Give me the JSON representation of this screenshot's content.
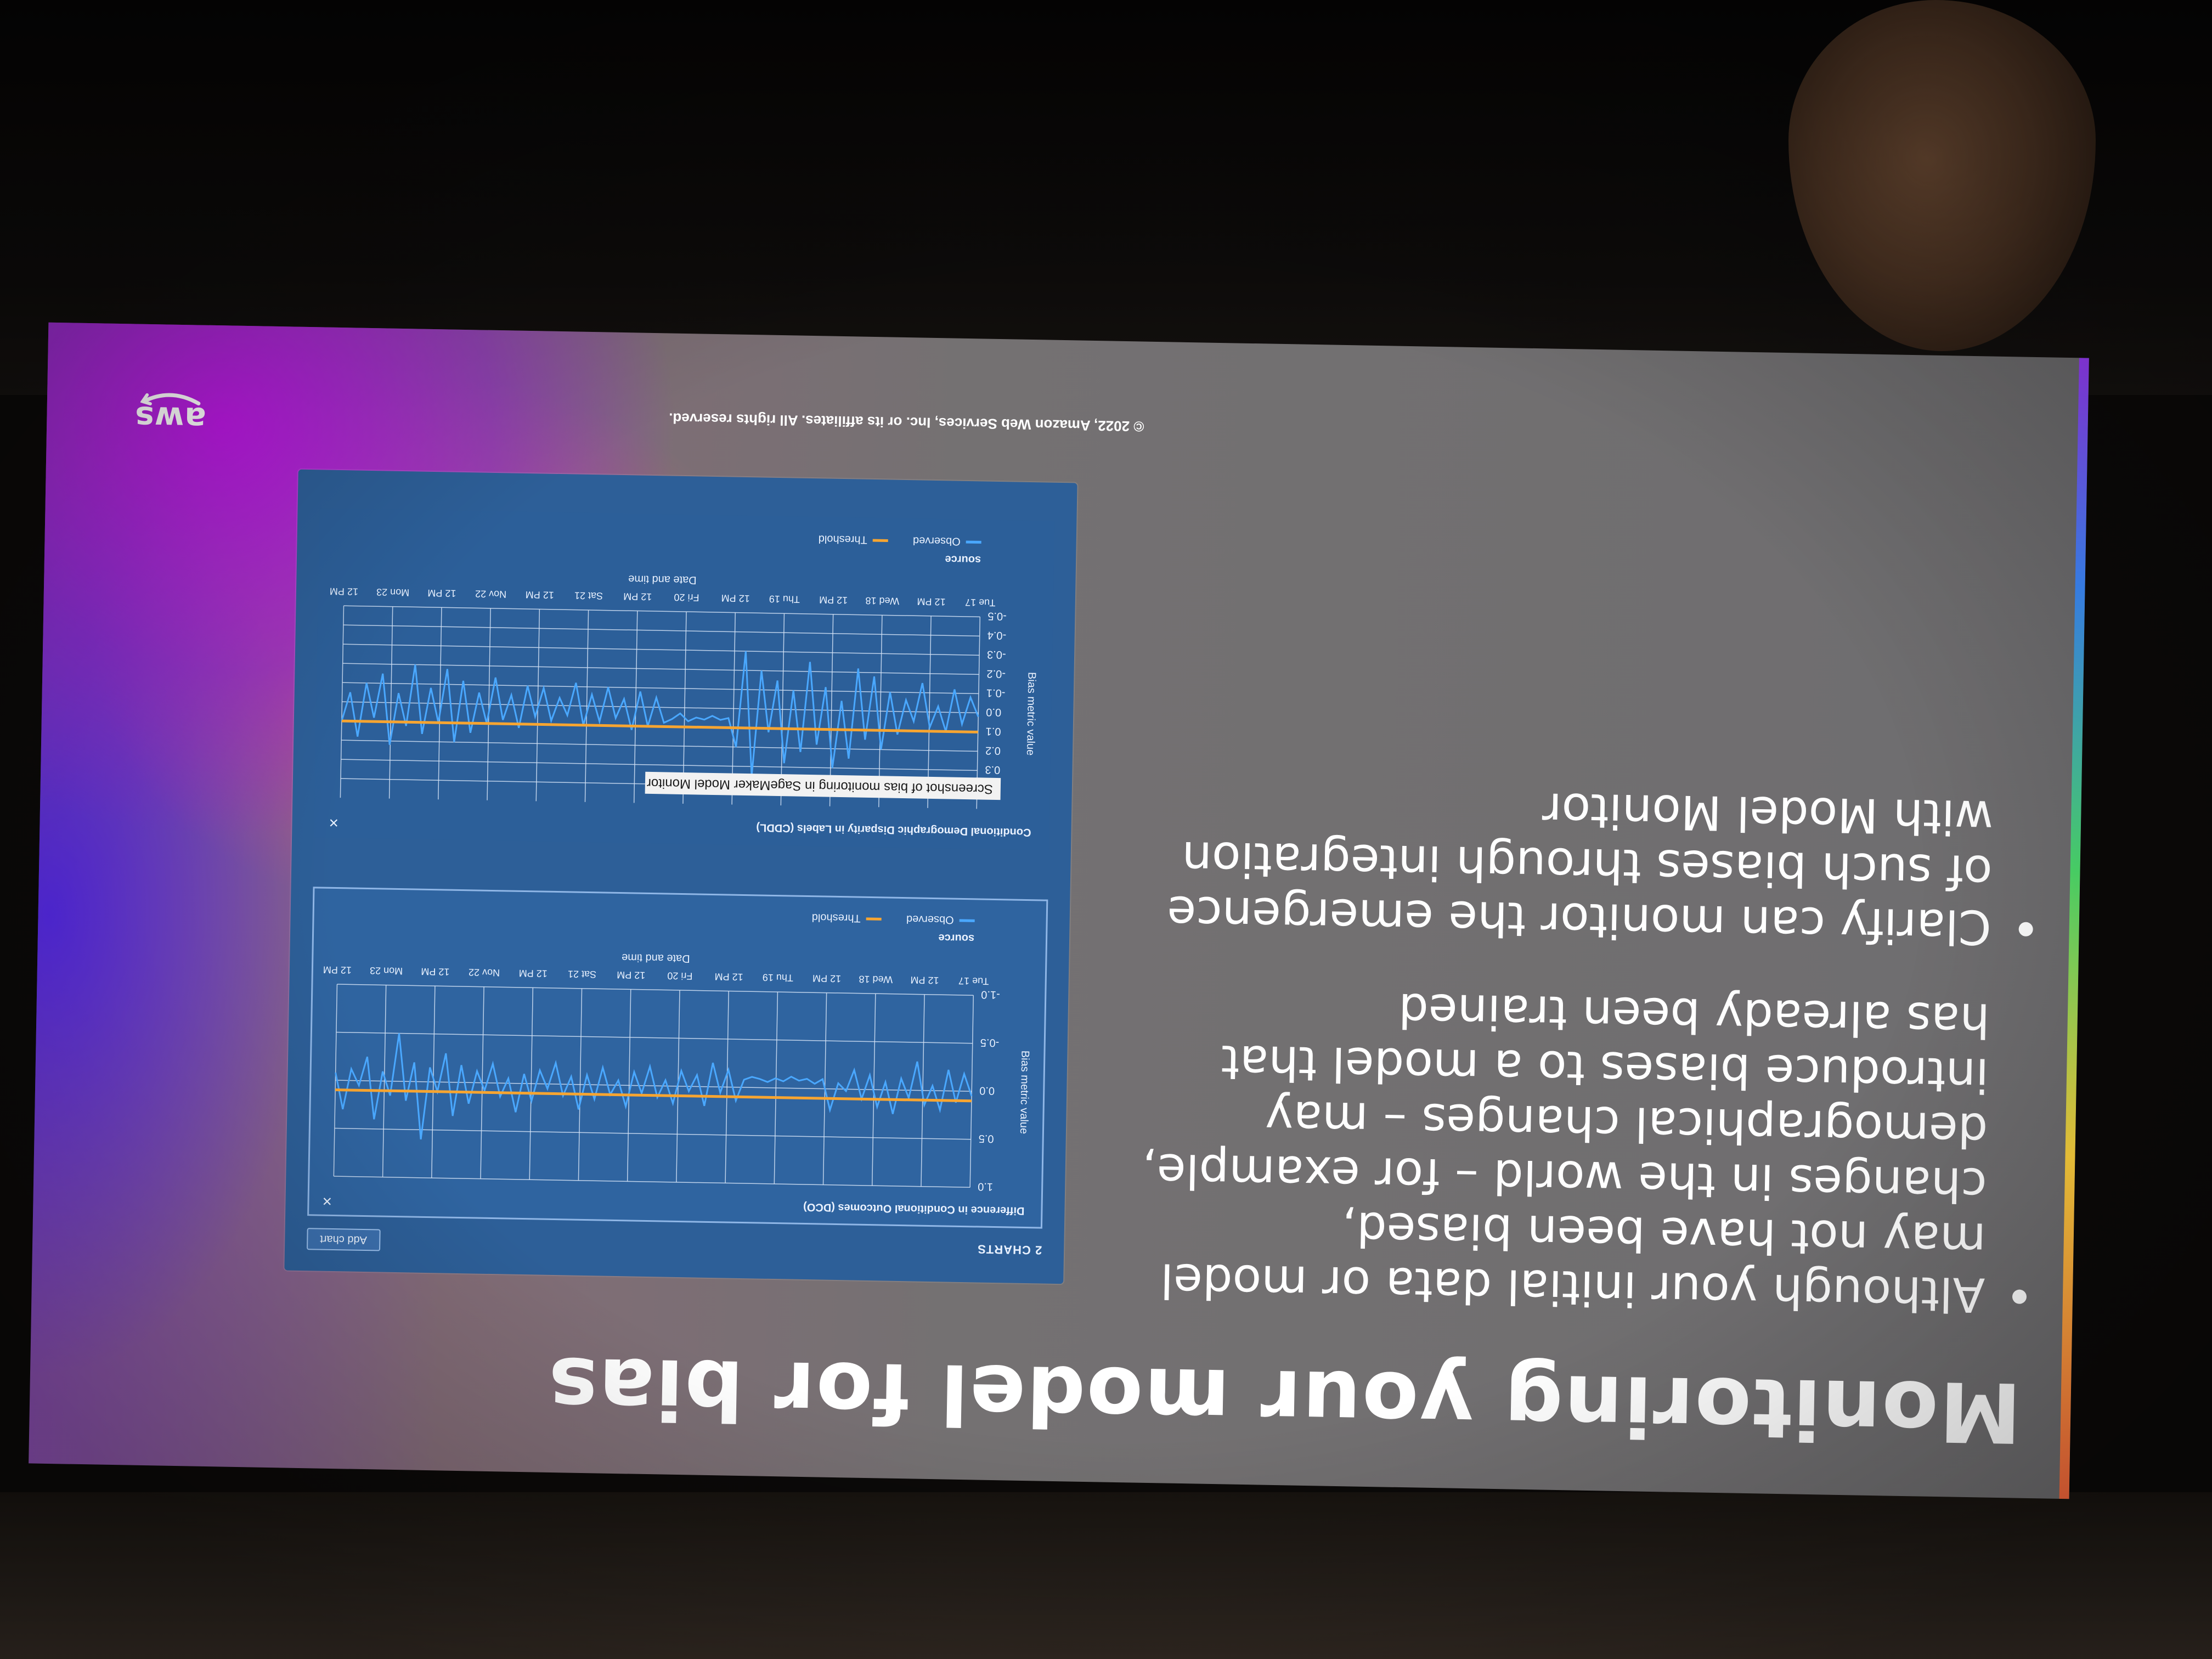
{
  "slide": {
    "title": "Monitoring your model for bias",
    "bullets": [
      "Although your initial data or model may not have been biased, changes in the world – for example, demographical changes – may introduce biases to a model that has already been trained",
      "Clarify can monitor the emergence of such biases through integration with Model Monitor"
    ],
    "caption": "Screenshot of bias monitoring in SageMaker Model Monitor",
    "copyright": "© 2022, Amazon Web Services, Inc. or its affiliates. All rights reserved.",
    "logo_text": "aws"
  },
  "dashboard": {
    "charts_count_label": "2 CHARTS",
    "add_chart_label": "Add chart",
    "close_glyph": "×",
    "legend_title": "source",
    "legend_items": [
      "Observed",
      "Threshold"
    ],
    "x_axis_label": "Date and time",
    "y_axis_label": "Bias metric value",
    "x_ticks": [
      "Tue 17",
      "12 PM",
      "Wed 18",
      "12 PM",
      "Thu 19",
      "12 PM",
      "Fri 20",
      "12 PM",
      "Sat 21",
      "12 PM",
      "Nov 22",
      "12 PM",
      "Mon 23",
      "12 PM"
    ]
  },
  "colors": {
    "observed": "#4aa8ff",
    "threshold": "#f7a531",
    "dashboard_bg": "#2d5f98",
    "grid": "#d6e4f7"
  },
  "chart_data": [
    {
      "type": "line",
      "title": "Difference in Conditional Outcomes (DCO)",
      "xlabel": "Date and time",
      "ylabel": "Bias metric value",
      "ylim": [
        -1.0,
        1.0
      ],
      "y_ticks": [
        "1.0",
        "0.5",
        "0.0",
        "-0.5",
        "-1.0"
      ],
      "threshold": 0.1,
      "series": [
        {
          "name": "Observed",
          "values": [
            0.05,
            -0.18,
            0.12,
            -0.22,
            0.2,
            -0.05,
            0.15,
            -0.3,
            0.08,
            -0.12,
            0.25,
            -0.08,
            0.18,
            -0.15,
            0.1,
            -0.2,
            0.02,
            -0.06,
            0.22,
            -0.1,
            -0.05,
            -0.1,
            -0.08,
            -0.12,
            -0.07,
            -0.1,
            -0.06,
            -0.09,
            -0.11,
            -0.08,
            0.14,
            -0.18,
            0.06,
            -0.25,
            0.2,
            -0.12,
            0.05,
            -0.16,
            0.18,
            -0.06,
            0.12,
            -0.2,
            0.08,
            -0.14,
            0.22,
            -0.05,
            0.1,
            -0.18,
            0.15,
            -0.1,
            0.26,
            -0.08,
            0.12,
            -0.22,
            0.05,
            -0.14,
            0.18,
            -0.1,
            0.3,
            -0.05,
            0.14,
            -0.2,
            0.08,
            -0.12,
            0.22,
            -0.18,
            0.35,
            -0.3,
            0.1,
            -0.15,
            0.6,
            -0.2,
            0.2,
            -0.5,
            0.15,
            -0.1,
            0.4,
            -0.25,
            0.05,
            -0.12,
            0.3,
            -0.08
          ]
        },
        {
          "name": "Threshold",
          "values": [
            0.1
          ]
        }
      ]
    },
    {
      "type": "line",
      "title": "Conditional Demographic Disparity in Labels (CDDL)",
      "xlabel": "Date and time",
      "ylabel": "Bias metric value",
      "ylim": [
        -0.5,
        0.5
      ],
      "y_ticks": [
        "0.4",
        "0.3",
        "0.2",
        "0.1",
        "0.0",
        "-0.1",
        "-0.2",
        "-0.3",
        "-0.4",
        "-0.5"
      ],
      "threshold": 0.1,
      "series": [
        {
          "name": "Observed",
          "values": [
            0.02,
            -0.08,
            0.06,
            -0.12,
            0.1,
            -0.03,
            0.08,
            -0.15,
            0.05,
            -0.06,
            0.12,
            -0.1,
            0.2,
            -0.18,
            0.15,
            -0.22,
            0.25,
            -0.05,
            0.3,
            -0.12,
            0.18,
            -0.25,
            0.22,
            -0.1,
            0.28,
            -0.15,
            0.12,
            -0.2,
            0.35,
            -0.3,
            0.2,
            0.05,
            0.06,
            0.04,
            0.06,
            0.05,
            0.07,
            0.03,
            0.06,
            0.08,
            -0.05,
            0.1,
            -0.08,
            0.12,
            -0.04,
            0.06,
            -0.1,
            0.08,
            -0.06,
            0.1,
            -0.12,
            0.05,
            -0.04,
            0.08,
            -0.09,
            0.06,
            -0.1,
            0.12,
            -0.05,
            0.08,
            -0.14,
            0.1,
            -0.06,
            0.15,
            -0.12,
            0.2,
            -0.18,
            0.1,
            -0.08,
            0.16,
            -0.2,
            0.12,
            -0.05,
            0.22,
            -0.15,
            0.08,
            -0.1,
            0.18,
            -0.05,
            0.1
          ]
        },
        {
          "name": "Threshold",
          "values": [
            0.1
          ]
        }
      ]
    }
  ]
}
